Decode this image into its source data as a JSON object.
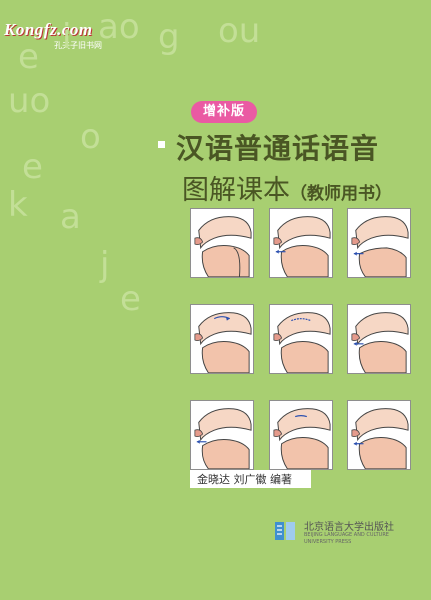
{
  "watermark": {
    "site": "Kongfz.com",
    "tagline": "孔夫子旧书网"
  },
  "decor_letters": [
    "i",
    "ao",
    "g",
    "ou",
    "e",
    "uo",
    "e",
    "o",
    "k",
    "a",
    "j",
    "e"
  ],
  "badge": "增补版",
  "title": "汉语普通话语音",
  "subtitle_main": "图解课本",
  "subtitle_paren": "（教师用书）",
  "authors": "金晓达  刘广徽  编著",
  "publisher": {
    "name_cn": "北京语言大学出版社",
    "name_en_1": "BEIJING LANGUAGE AND CULTURE",
    "name_en_2": "UNIVERSITY PRESS"
  },
  "colors": {
    "background": "#a8cf71",
    "title": "#4a5624",
    "badge": "#ea5aa3"
  }
}
